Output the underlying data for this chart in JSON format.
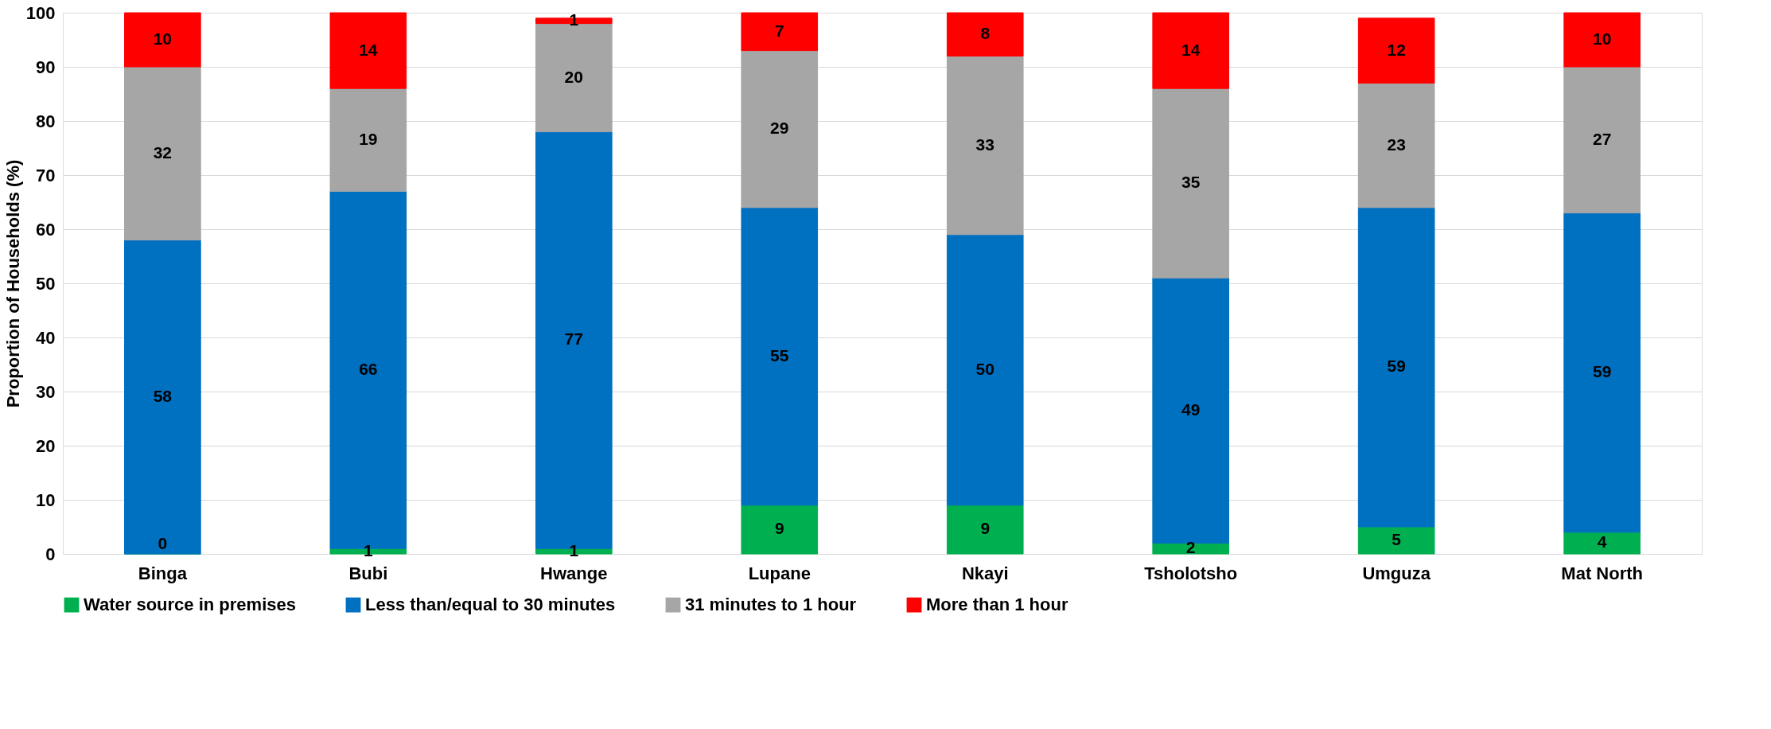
{
  "chart_data": {
    "type": "bar",
    "stacked": true,
    "ylabel": "Proportion of Households (%)",
    "categories": [
      "Binga",
      "Bubi",
      "Hwange",
      "Lupane",
      "Nkayi",
      "Tsholotsho",
      "Umguza",
      "Mat North"
    ],
    "series": [
      {
        "name": "Water source in premises",
        "color": "#00b050",
        "values": [
          0,
          1,
          1,
          9,
          9,
          2,
          5,
          4
        ]
      },
      {
        "name": "Less than/equal to 30 minutes",
        "color": "#0070c0",
        "values": [
          58,
          66,
          77,
          55,
          50,
          49,
          59,
          59
        ]
      },
      {
        "name": "31 minutes to 1 hour",
        "color": "#a6a6a6",
        "values": [
          32,
          19,
          20,
          29,
          33,
          35,
          23,
          27
        ]
      },
      {
        "name": "More than 1 hour",
        "color": "#ff0000",
        "values": [
          10,
          14,
          1,
          7,
          8,
          14,
          12,
          10
        ]
      }
    ],
    "ylim": [
      0,
      100
    ],
    "yticks": [
      0,
      10,
      20,
      30,
      40,
      50,
      60,
      70,
      80,
      90,
      100
    ],
    "grid": "y",
    "legend": "bottom",
    "data_labels": true
  }
}
